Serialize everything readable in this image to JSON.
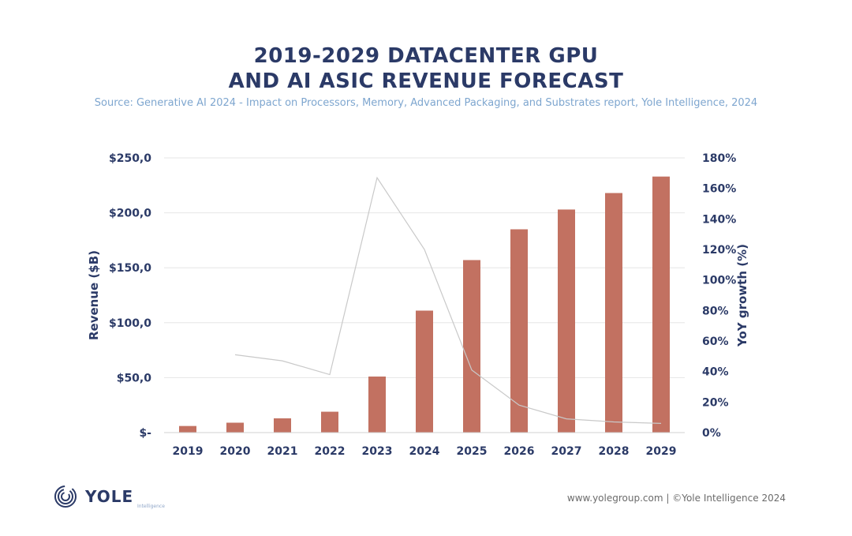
{
  "header": {
    "title_line1": "2019-2029 DATACENTER GPU",
    "title_line2": "AND AI ASIC REVENUE FORECAST",
    "source": "Source: Generative AI 2024 - Impact on Processors, Memory, Advanced Packaging, and Substrates report, Yole Intelligence, 2024"
  },
  "colors": {
    "bar": "#c27161",
    "line": "#c9c9c9",
    "axis_text": "#2b3a67",
    "gridline": "#e6e6e6"
  },
  "chart_data": {
    "type": "bar",
    "categories": [
      "2019",
      "2020",
      "2021",
      "2022",
      "2023",
      "2024",
      "2025",
      "2026",
      "2027",
      "2028",
      "2029"
    ],
    "series": [
      {
        "type": "bar",
        "axis": "left",
        "values": [
          6,
          9,
          13,
          19,
          51,
          111,
          157,
          185,
          203,
          218,
          233
        ]
      },
      {
        "type": "line",
        "axis": "right",
        "values": [
          null,
          51,
          47,
          38,
          167,
          120,
          41,
          18,
          9,
          7,
          6
        ]
      }
    ],
    "ylabel": "Revenue ($B)",
    "y2label": "YoY growth (%)",
    "ylim": [
      0,
      250
    ],
    "y2lim": [
      0,
      180
    ],
    "y_ticks": [
      "$-",
      "$50,0",
      "$100,0",
      "$150,0",
      "$200,0",
      "$250,0"
    ],
    "y2_ticks": [
      "0%",
      "20%",
      "40%",
      "60%",
      "80%",
      "100%",
      "120%",
      "140%",
      "160%",
      "180%"
    ],
    "grid": true
  },
  "footer": {
    "logo_text": "YOLE",
    "logo_sub": "Intelligence",
    "credit": "www.yolegroup.com | ©Yole Intelligence 2024"
  }
}
